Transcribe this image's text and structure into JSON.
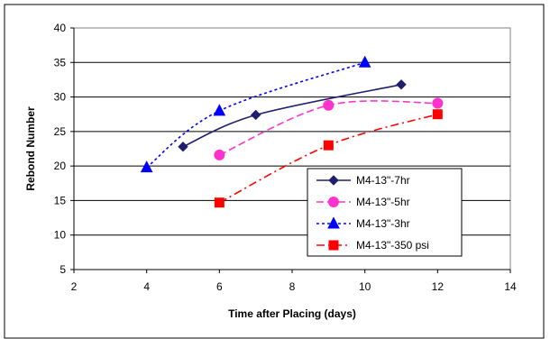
{
  "chart_data": {
    "type": "line",
    "title": "",
    "xlabel": "Time after Placing (days)",
    "ylabel": "Rebond Number",
    "xlim": [
      2,
      14
    ],
    "ylim": [
      5,
      40
    ],
    "x_ticks": [
      2,
      4,
      6,
      8,
      10,
      12,
      14
    ],
    "y_ticks": [
      5,
      10,
      15,
      20,
      25,
      30,
      35,
      40
    ],
    "grid": "horizontal major gridlines",
    "legend_position": "bottom-right",
    "series": [
      {
        "name": "M4-13\"-7hr",
        "color": "#1f1f6e",
        "line_style": "solid",
        "marker": "diamond",
        "x": [
          5,
          7,
          11
        ],
        "y": [
          22.8,
          27.4,
          31.8
        ]
      },
      {
        "name": "M4-13\"-5hr",
        "color": "#ff33cc",
        "line_style": "dashed",
        "marker": "circle",
        "x": [
          6,
          9,
          12
        ],
        "y": [
          21.6,
          28.8,
          29.1
        ]
      },
      {
        "name": "M4-13\"-3hr",
        "color": "#0000ff",
        "line_style": "dotted",
        "marker": "triangle",
        "x": [
          4,
          6,
          10
        ],
        "y": [
          19.8,
          28.0,
          35.0
        ]
      },
      {
        "name": "M4-13\"-350 psi",
        "color": "#ff0000",
        "line_style": "dash-dot",
        "marker": "square",
        "x": [
          6,
          9,
          12
        ],
        "y": [
          14.7,
          23.0,
          27.5
        ]
      }
    ]
  }
}
